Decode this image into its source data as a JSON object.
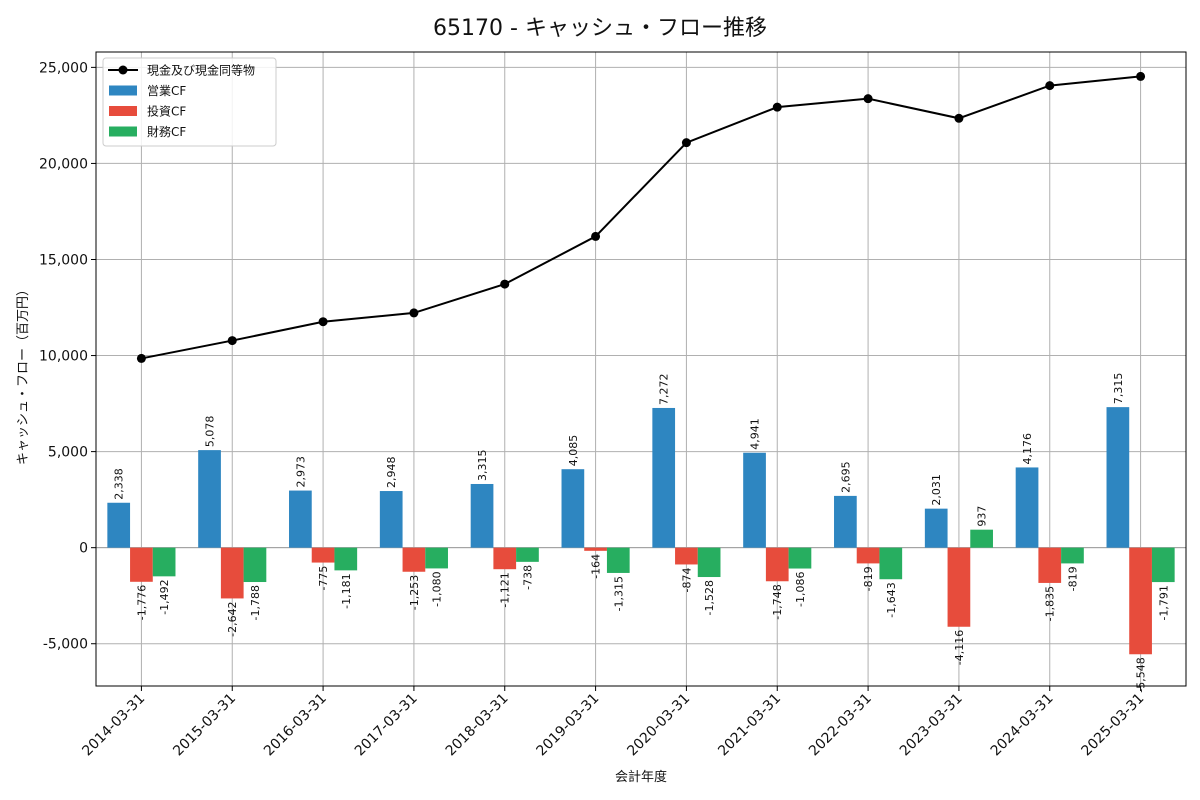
{
  "chart_data": {
    "type": "bar",
    "title": "65170 - キャッシュ・フロー推移",
    "xlabel": "会計年度",
    "ylabel": "キャッシュ・フロー（百万円）",
    "ylim": [
      -7200,
      25800
    ],
    "yticks": [
      -5000,
      0,
      5000,
      10000,
      15000,
      20000,
      25000
    ],
    "ytick_labels": [
      "-5,000",
      "0",
      "5,000",
      "10,000",
      "15,000",
      "20,000",
      "25,000"
    ],
    "grid": true,
    "legend_position": "top-left",
    "categories": [
      "2014-03-31",
      "2015-03-31",
      "2016-03-31",
      "2017-03-31",
      "2018-03-31",
      "2019-03-31",
      "2020-03-31",
      "2021-03-31",
      "2022-03-31",
      "2023-03-31",
      "2024-03-31",
      "2025-03-31"
    ],
    "series": [
      {
        "name": "営業CF",
        "kind": "bar",
        "color": "#2e86c1",
        "values": [
          2338,
          5078,
          2973,
          2948,
          3315,
          4085,
          7272,
          4941,
          2695,
          2031,
          4176,
          7315
        ],
        "labels": [
          "2,338",
          "5,078",
          "2,973",
          "2,948",
          "3,315",
          "4,085",
          "7,272",
          "4,941",
          "2,695",
          "2,031",
          "4,176",
          "7,315"
        ]
      },
      {
        "name": "投資CF",
        "kind": "bar",
        "color": "#e74c3c",
        "values": [
          -1776,
          -2642,
          -775,
          -1253,
          -1121,
          -164,
          -874,
          -1748,
          -819,
          -4116,
          -1835,
          -5548
        ],
        "labels": [
          "-1,776",
          "-2,642",
          "-775",
          "-1,253",
          "-1,121",
          "-164",
          "-874",
          "-1,748",
          "-819",
          "-4,116",
          "-1,835",
          "-5,548"
        ]
      },
      {
        "name": "財務CF",
        "kind": "bar",
        "color": "#27ae60",
        "values": [
          -1492,
          -1788,
          -1181,
          -1080,
          -738,
          -1315,
          -1528,
          -1086,
          -1643,
          937,
          -819,
          -1791
        ],
        "labels": [
          "-1,492",
          "-1,788",
          "-1,181",
          "-1,080",
          "-738",
          "-1,315",
          "-1,528",
          "-1,086",
          "-1,643",
          "937",
          "-819",
          "-1,791"
        ]
      },
      {
        "name": "現金及び現金同等物",
        "kind": "line",
        "color": "#000000",
        "values": [
          9850,
          10780,
          11760,
          12220,
          13720,
          16200,
          21080,
          22930,
          23370,
          22350,
          24050,
          24530
        ]
      }
    ]
  }
}
